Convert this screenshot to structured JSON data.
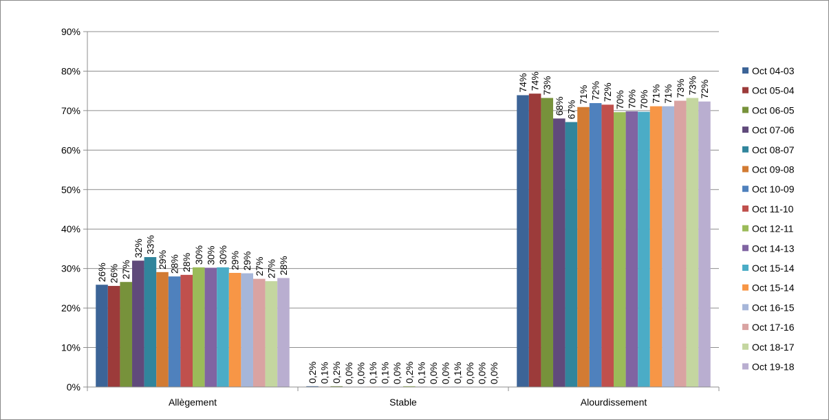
{
  "chart_data": {
    "type": "bar",
    "categories": [
      "Allègement",
      "Stable",
      "Alourdissement"
    ],
    "ylim": [
      0,
      90
    ],
    "yticks": [
      {
        "value": 0,
        "label": "0%"
      },
      {
        "value": 10,
        "label": "10%"
      },
      {
        "value": 20,
        "label": "20%"
      },
      {
        "value": 30,
        "label": "30%"
      },
      {
        "value": 40,
        "label": "40%"
      },
      {
        "value": 50,
        "label": "50%"
      },
      {
        "value": 60,
        "label": "60%"
      },
      {
        "value": 70,
        "label": "70%"
      },
      {
        "value": 80,
        "label": "80%"
      },
      {
        "value": 90,
        "label": "90%"
      }
    ],
    "grid": true,
    "legend": "right",
    "series": [
      {
        "name": "Oct 04-03",
        "color": "#3c6497",
        "values": [
          25.9,
          0.2,
          73.9
        ],
        "value_labels": [
          "26%",
          "0,2%",
          "74%"
        ]
      },
      {
        "name": "Oct 05-04",
        "color": "#9c3b3a",
        "values": [
          25.6,
          0.1,
          74.3
        ],
        "value_labels": [
          "26%",
          "0,1%",
          "74%"
        ]
      },
      {
        "name": "Oct 06-05",
        "color": "#77923b",
        "values": [
          26.6,
          0.2,
          73.2
        ],
        "value_labels": [
          "27%",
          "0,2%",
          "73%"
        ]
      },
      {
        "name": "Oct 07-06",
        "color": "#604a7b",
        "values": [
          32.0,
          0.0,
          68.0
        ],
        "value_labels": [
          "32%",
          "0,0%",
          "68%"
        ]
      },
      {
        "name": "Oct 08-07",
        "color": "#31859c",
        "values": [
          32.9,
          0.0,
          67.1
        ],
        "value_labels": [
          "33%",
          "0,0%",
          "67%"
        ]
      },
      {
        "name": "Oct 09-08",
        "color": "#d27b33",
        "values": [
          29.1,
          0.1,
          70.9
        ],
        "value_labels": [
          "29%",
          "0,1%",
          "71%"
        ]
      },
      {
        "name": "Oct 10-09",
        "color": "#4f81bd",
        "values": [
          28.0,
          0.1,
          71.9
        ],
        "value_labels": [
          "28%",
          "0,1%",
          "72%"
        ]
      },
      {
        "name": "Oct 11-10",
        "color": "#c0504d",
        "values": [
          28.4,
          0.0,
          71.5
        ],
        "value_labels": [
          "28%",
          "0,0%",
          "72%"
        ]
      },
      {
        "name": "Oct 12-11",
        "color": "#9bbb59",
        "values": [
          30.3,
          0.2,
          69.6
        ],
        "value_labels": [
          "30%",
          "0,2%",
          "70%"
        ]
      },
      {
        "name": "Oct 14-13",
        "color": "#8064a2",
        "values": [
          30.2,
          0.1,
          69.8
        ],
        "value_labels": [
          "30%",
          "0,1%",
          "70%"
        ]
      },
      {
        "name": "Oct 15-14",
        "color": "#4bacc6",
        "values": [
          30.3,
          0.0,
          69.7
        ],
        "value_labels": [
          "30%",
          "0,0%",
          "70%"
        ]
      },
      {
        "name": "Oct 15-14",
        "color": "#f79646",
        "values": [
          28.9,
          0.0,
          71.1
        ],
        "value_labels": [
          "29%",
          "0,0%",
          "71%"
        ]
      },
      {
        "name": "Oct 16-15",
        "color": "#a6b6d9",
        "values": [
          28.8,
          0.1,
          71.1
        ],
        "value_labels": [
          "29%",
          "0,1%",
          "71%"
        ]
      },
      {
        "name": "Oct 17-16",
        "color": "#d9a3a2",
        "values": [
          27.4,
          0.0,
          72.5
        ],
        "value_labels": [
          "27%",
          "0,0%",
          "73%"
        ]
      },
      {
        "name": "Oct 18-17",
        "color": "#c4d6a0",
        "values": [
          26.8,
          0.0,
          73.2
        ],
        "value_labels": [
          "27%",
          "0,0%",
          "73%"
        ]
      },
      {
        "name": "Oct 19-18",
        "color": "#b9aed0",
        "values": [
          27.6,
          0.0,
          72.3
        ],
        "value_labels": [
          "28%",
          "0,0%",
          "72%"
        ]
      }
    ]
  }
}
